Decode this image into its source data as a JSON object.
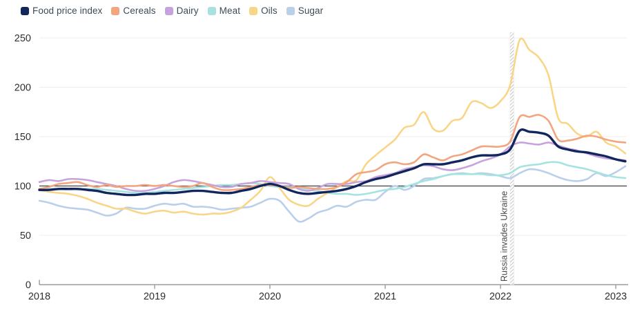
{
  "legend": {
    "items": [
      {
        "label": "Food price index",
        "color": "#12265e"
      },
      {
        "label": "Cereals",
        "color": "#f2a57e"
      },
      {
        "label": "Dairy",
        "color": "#c7a2dc"
      },
      {
        "label": "Meat",
        "color": "#a5e3e0"
      },
      {
        "label": "Oils",
        "color": "#f9d687"
      },
      {
        "label": "Sugar",
        "color": "#b9cfec"
      }
    ]
  },
  "chart_data": {
    "type": "line",
    "title": "",
    "x_unit": "month",
    "x_start": "2018-01",
    "x_end": "2023-02",
    "x_ticks": [
      "2018",
      "2019",
      "2020",
      "2021",
      "2022",
      "2023"
    ],
    "y_ticks": [
      0,
      50,
      100,
      150,
      200,
      250
    ],
    "ylim": [
      0,
      250
    ],
    "baseline_value": 100,
    "grid": "horizontal",
    "legend_position": "top-left",
    "annotation": {
      "label": "Russia invades Ukraine",
      "x_month_index": 49.2
    },
    "colors": {
      "grid": "#ececec",
      "baseline": "#3d3d3d",
      "axis": "#999999",
      "tick_text": "#2f2f2f",
      "annotation_text": "#4a4a4a",
      "hatch": "#a0a0a0"
    },
    "series": [
      {
        "name": "Sugar",
        "color": "#b9cfec",
        "width": 2.6,
        "values": [
          85,
          83,
          80,
          78,
          77,
          76,
          73,
          70,
          72,
          78,
          77,
          77,
          80,
          82,
          81,
          82,
          79,
          79,
          78,
          76,
          77,
          78,
          79,
          83,
          87,
          85,
          74,
          64,
          67,
          73,
          76,
          80,
          79,
          84,
          86,
          86,
          94,
          100,
          96,
          100,
          107,
          108,
          110,
          112,
          113,
          112,
          113,
          112,
          110,
          108,
          113,
          117,
          116,
          113,
          109,
          106,
          105,
          107,
          113,
          110,
          114,
          120
        ]
      },
      {
        "name": "Meat",
        "color": "#a5e3e0",
        "width": 2.6,
        "values": [
          97,
          97,
          97,
          97,
          97,
          97,
          97,
          96,
          95,
          94,
          93,
          93,
          94,
          95,
          96,
          97,
          98,
          99,
          100,
          101,
          101,
          102,
          103,
          102,
          100,
          99,
          99,
          98,
          96,
          95,
          93,
          92,
          92,
          91,
          92,
          94,
          96,
          97,
          99,
          102,
          105,
          107,
          110,
          112,
          112,
          112,
          112,
          111,
          111,
          113,
          119,
          121,
          122,
          124,
          124,
          121,
          119,
          117,
          114,
          111,
          109,
          108
        ]
      },
      {
        "name": "Oils",
        "color": "#f9d687",
        "width": 2.6,
        "values": [
          96,
          94,
          93,
          92,
          90,
          87,
          83,
          80,
          77,
          77,
          74,
          72,
          74,
          75,
          73,
          74,
          72,
          71,
          72,
          72,
          74,
          78,
          86,
          95,
          109,
          98,
          86,
          81,
          80,
          87,
          93,
          99,
          105,
          106,
          122,
          131,
          139,
          147,
          159,
          162,
          175,
          158,
          156,
          166,
          169,
          185,
          184,
          179,
          186,
          202,
          248,
          238,
          230,
          212,
          169,
          163,
          153,
          150,
          155,
          144,
          140,
          133
        ]
      },
      {
        "name": "Dairy",
        "color": "#c7a2dc",
        "width": 2.6,
        "values": [
          104,
          106,
          105,
          107,
          107,
          106,
          104,
          102,
          100,
          97,
          95,
          95,
          97,
          100,
          104,
          106,
          105,
          103,
          101,
          99,
          99,
          102,
          103,
          105,
          104,
          103,
          102,
          97,
          95,
          98,
          102,
          102,
          102,
          104,
          105,
          109,
          111,
          113,
          117,
          119,
          121,
          120,
          117,
          116,
          118,
          121,
          125,
          128,
          132,
          140,
          144,
          143,
          142,
          144,
          141,
          138,
          136,
          133,
          130,
          128,
          127,
          126
        ]
      },
      {
        "name": "Cereals",
        "color": "#f2a57e",
        "width": 2.6,
        "values": [
          97,
          99,
          102,
          103,
          104,
          101,
          99,
          101,
          99,
          100,
          100,
          101,
          100,
          101,
          100,
          99,
          100,
          103,
          99,
          96,
          96,
          97,
          99,
          101,
          101,
          100,
          98,
          99,
          98,
          97,
          97,
          99,
          104,
          112,
          114,
          116,
          122,
          124,
          122,
          124,
          132,
          129,
          126,
          130,
          132,
          136,
          140,
          140,
          140,
          145,
          170,
          170,
          172,
          166,
          147,
          146,
          148,
          151,
          150,
          147,
          145,
          144
        ]
      },
      {
        "name": "Food price index",
        "color": "#12265e",
        "width": 3.4,
        "values": [
          96,
          96,
          97,
          97,
          97,
          96,
          95,
          93,
          92,
          91,
          91,
          92,
          92,
          93,
          93,
          94,
          95,
          95,
          94,
          93,
          93,
          95,
          97,
          100,
          102,
          100,
          96,
          93,
          92,
          93,
          94,
          95,
          97,
          100,
          104,
          107,
          109,
          112,
          115,
          118,
          122,
          122,
          122,
          124,
          126,
          129,
          131,
          131,
          132,
          137,
          156,
          155,
          154,
          151,
          140,
          137,
          135,
          134,
          132,
          130,
          127,
          125
        ]
      }
    ]
  }
}
